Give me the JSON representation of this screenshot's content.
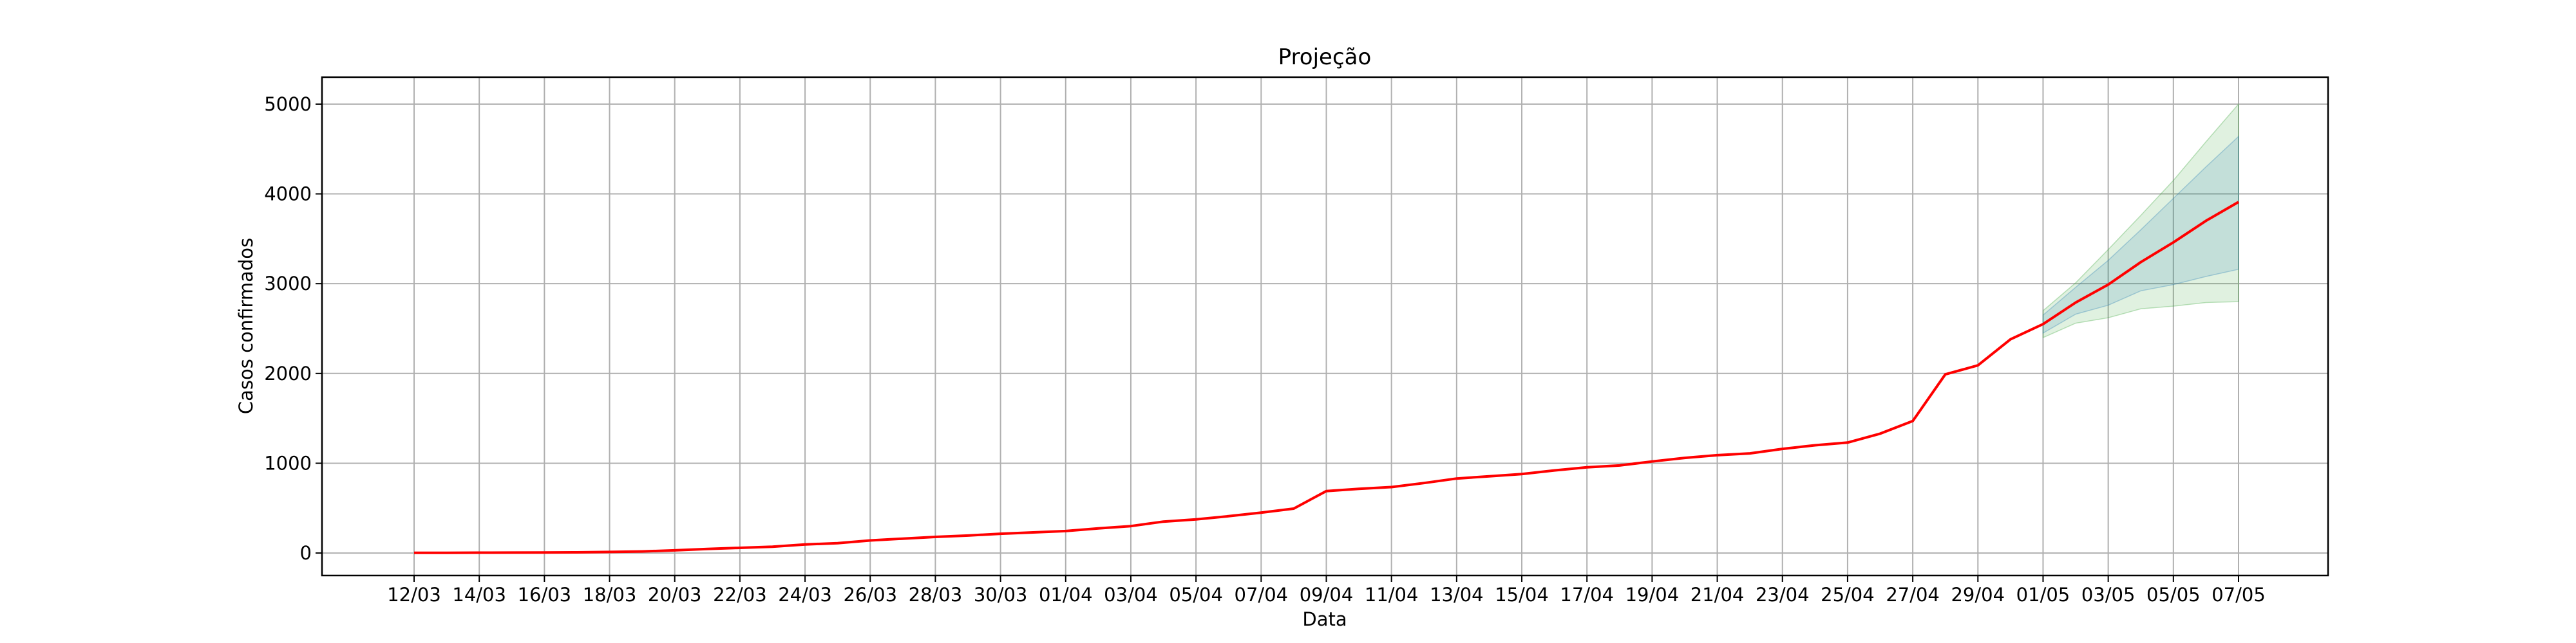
{
  "chart_data": {
    "type": "line",
    "title": "Projeção",
    "xlabel": "Data",
    "ylabel": "Casos confirmados",
    "grid": true,
    "ylim": [
      -250,
      5300
    ],
    "yticks": [
      0,
      1000,
      2000,
      3000,
      4000,
      5000
    ],
    "x": [
      "12/03",
      "13/03",
      "14/03",
      "15/03",
      "16/03",
      "17/03",
      "18/03",
      "19/03",
      "20/03",
      "21/03",
      "22/03",
      "23/03",
      "24/03",
      "25/03",
      "26/03",
      "27/03",
      "28/03",
      "29/03",
      "30/03",
      "31/03",
      "01/04",
      "02/04",
      "03/04",
      "04/04",
      "05/04",
      "06/04",
      "07/04",
      "08/04",
      "09/04",
      "10/04",
      "11/04",
      "12/04",
      "13/04",
      "14/04",
      "15/04",
      "16/04",
      "17/04",
      "18/04",
      "19/04",
      "20/04",
      "21/04",
      "22/04",
      "23/04",
      "24/04",
      "25/04",
      "26/04",
      "27/04",
      "28/04",
      "29/04",
      "30/04",
      "01/05",
      "02/05",
      "03/05",
      "04/05",
      "05/05",
      "06/05",
      "07/05"
    ],
    "xtick_labels": [
      "12/03",
      "14/03",
      "16/03",
      "18/03",
      "20/03",
      "22/03",
      "24/03",
      "26/03",
      "28/03",
      "30/03",
      "01/04",
      "03/04",
      "05/04",
      "07/04",
      "09/04",
      "11/04",
      "13/04",
      "15/04",
      "17/04",
      "19/04",
      "21/04",
      "23/04",
      "25/04",
      "27/04",
      "29/04",
      "01/05",
      "03/05",
      "05/05",
      "07/05"
    ],
    "series": [
      {
        "color": "#ff0000",
        "values": [
          2,
          3,
          4,
          5,
          6,
          8,
          12,
          18,
          30,
          45,
          58,
          70,
          95,
          110,
          140,
          160,
          180,
          195,
          215,
          230,
          245,
          275,
          300,
          350,
          375,
          410,
          450,
          495,
          690,
          715,
          735,
          780,
          830,
          855,
          880,
          920,
          955,
          975,
          1020,
          1060,
          1090,
          1110,
          1160,
          1200,
          1230,
          1330,
          1470,
          1990,
          2090,
          2380,
          2550,
          2790,
          2990,
          3240,
          3460,
          3700,
          3910
        ]
      }
    ],
    "bands": [
      {
        "color": "#2ca02c",
        "x": [
          "01/05",
          "02/05",
          "03/05",
          "04/05",
          "05/05",
          "06/05",
          "07/05"
        ],
        "lower": [
          2400,
          2560,
          2620,
          2720,
          2750,
          2790,
          2800
        ],
        "upper": [
          2700,
          3010,
          3380,
          3760,
          4150,
          4580,
          5000
        ]
      },
      {
        "color": "#1f77b4",
        "x": [
          "01/05",
          "02/05",
          "03/05",
          "04/05",
          "05/05",
          "06/05",
          "07/05"
        ],
        "lower": [
          2450,
          2660,
          2760,
          2920,
          2990,
          3080,
          3160
        ],
        "upper": [
          2650,
          2960,
          3260,
          3600,
          3950,
          4300,
          4640
        ]
      }
    ]
  }
}
